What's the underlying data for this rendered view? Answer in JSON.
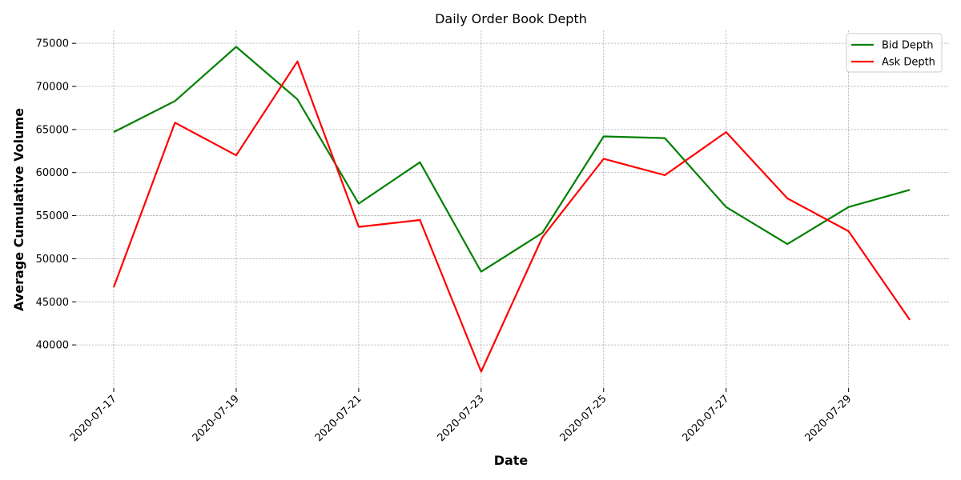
{
  "chart_data": {
    "type": "line",
    "title": "Daily Order Book Depth",
    "xlabel": "Date",
    "ylabel": "Average Cumulative Volume",
    "x": [
      "2020-07-17",
      "2020-07-18",
      "2020-07-19",
      "2020-07-20",
      "2020-07-21",
      "2020-07-22",
      "2020-07-23",
      "2020-07-24",
      "2020-07-25",
      "2020-07-26",
      "2020-07-27",
      "2020-07-28",
      "2020-07-29",
      "2020-07-30"
    ],
    "x_tick_labels": [
      "2020-07-17",
      "2020-07-19",
      "2020-07-21",
      "2020-07-23",
      "2020-07-25",
      "2020-07-27",
      "2020-07-29"
    ],
    "y_ticks": [
      40000,
      45000,
      50000,
      55000,
      60000,
      65000,
      70000,
      75000
    ],
    "ylim": [
      35000,
      76500
    ],
    "grid": true,
    "legend_position": "top-right",
    "series": [
      {
        "name": "Bid Depth",
        "color": "#008000",
        "values": [
          64700,
          68300,
          74600,
          68500,
          56400,
          61200,
          48500,
          53000,
          64200,
          64000,
          56000,
          51700,
          56000,
          58000
        ]
      },
      {
        "name": "Ask Depth",
        "color": "#ff0000",
        "values": [
          46700,
          65800,
          62000,
          72900,
          53700,
          54500,
          36900,
          52500,
          61600,
          59700,
          64700,
          57000,
          53200,
          42900
        ]
      }
    ]
  }
}
